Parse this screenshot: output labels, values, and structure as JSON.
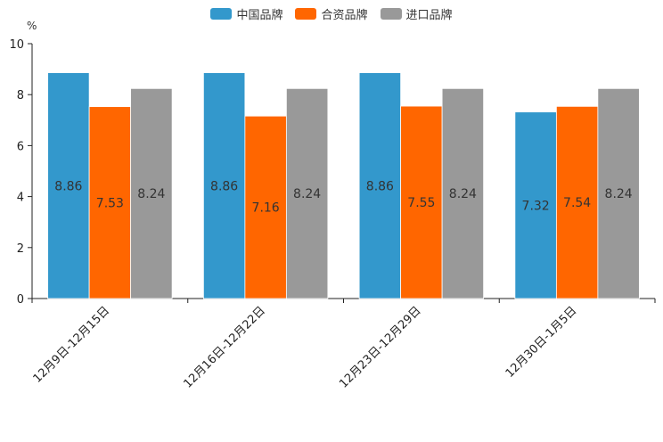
{
  "chart_data": {
    "type": "bar",
    "unit": "%",
    "categories": [
      "12月9日-12月15日",
      "12月16日-12月22日",
      "12月23日-12月29日",
      "12月30日-1月5日"
    ],
    "series": [
      {
        "name": "中国品牌",
        "color": "#3398cc",
        "values": [
          8.86,
          8.86,
          8.86,
          7.32
        ]
      },
      {
        "name": "合资品牌",
        "color": "#ff6600",
        "values": [
          7.53,
          7.16,
          7.55,
          7.54
        ]
      },
      {
        "name": "进口品牌",
        "color": "#999999",
        "values": [
          8.24,
          8.24,
          8.24,
          8.24
        ]
      }
    ],
    "ylim": [
      0,
      10
    ],
    "yticks": [
      0,
      2,
      4,
      6,
      8,
      10
    ],
    "legend_position": "top-center",
    "grid": false
  }
}
